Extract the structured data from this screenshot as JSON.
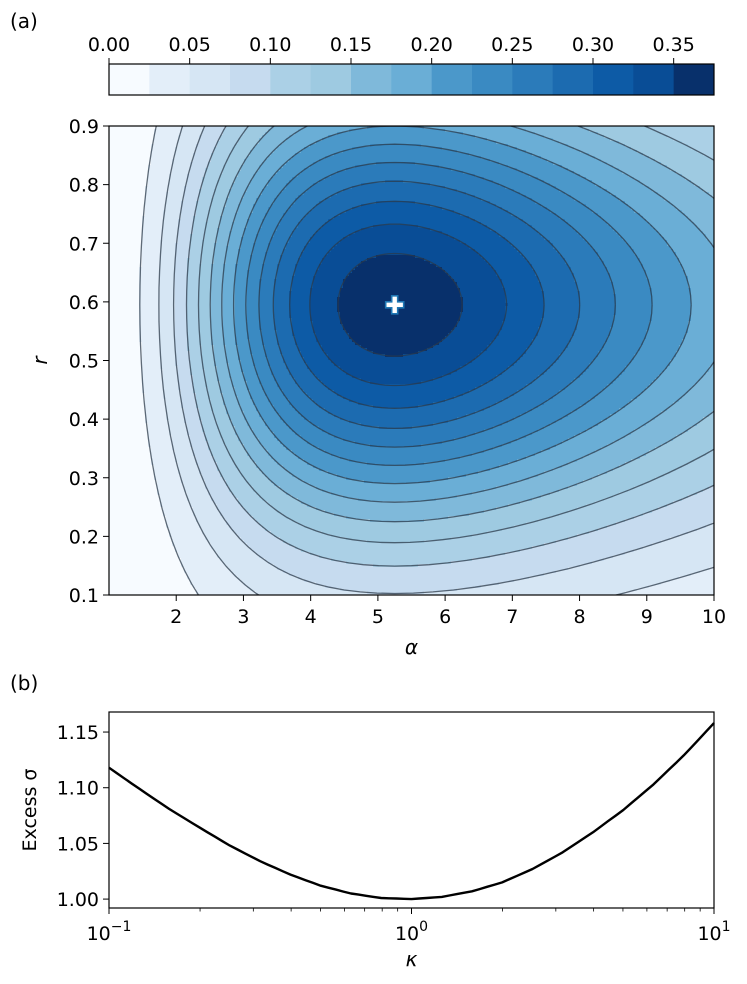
{
  "chart_data": [
    {
      "panel": "(a)",
      "type": "contour",
      "xlabel": "α",
      "ylabel": "r",
      "xlim": [
        1,
        10
      ],
      "ylim": [
        0.1,
        0.9
      ],
      "xticks": [
        2,
        3,
        4,
        5,
        6,
        7,
        8,
        9,
        10
      ],
      "yticks": [
        0.1,
        0.2,
        0.3,
        0.4,
        0.5,
        0.6,
        0.7,
        0.8,
        0.9
      ],
      "optimum_marker": {
        "alpha": 5.25,
        "r": 0.595,
        "symbol": "plus"
      },
      "colorbar": {
        "position": "top",
        "range": [
          0.0,
          0.375
        ],
        "levels": [
          0.0,
          0.025,
          0.05,
          0.075,
          0.1,
          0.125,
          0.15,
          0.175,
          0.2,
          0.225,
          0.25,
          0.275,
          0.3,
          0.325,
          0.35,
          0.375
        ],
        "tick_labels": [
          "0.00",
          "0.05",
          "0.10",
          "0.15",
          "0.20",
          "0.25",
          "0.30",
          "0.35"
        ],
        "tick_values": [
          0.0,
          0.05,
          0.1,
          0.15,
          0.2,
          0.25,
          0.3,
          0.35
        ],
        "colors": [
          "#f7fbff",
          "#e3eef9",
          "#d6e6f4",
          "#c6dbef",
          "#abd0e6",
          "#9ecae1",
          "#7fb9da",
          "#6aaed6",
          "#4b98ca",
          "#3a8ac2",
          "#2b7bba",
          "#1c6bb0",
          "#0d5ba6",
          "#094d96",
          "#08306b"
        ]
      }
    },
    {
      "panel": "(b)",
      "type": "line",
      "xlabel": "κ",
      "ylabel": "Excess σ",
      "xscale": "log",
      "xlim": [
        0.1,
        10
      ],
      "ylim": [
        0.992,
        1.168
      ],
      "xtick_labels": [
        {
          "base": "10",
          "exp": "−1",
          "value": 0.1
        },
        {
          "base": "10",
          "exp": "0",
          "value": 1
        },
        {
          "base": "10",
          "exp": "1",
          "value": 10
        }
      ],
      "ytick_labels": [
        "1.00",
        "1.05",
        "1.10",
        "1.15"
      ],
      "ytick_values": [
        1.0,
        1.05,
        1.1,
        1.15
      ],
      "series": [
        {
          "x": [
            0.1,
            0.126,
            0.158,
            0.2,
            0.251,
            0.316,
            0.398,
            0.501,
            0.631,
            0.794,
            1.0,
            1.259,
            1.585,
            1.995,
            2.512,
            3.162,
            3.981,
            5.012,
            6.31,
            7.943,
            10.0
          ],
          "y": [
            1.118,
            1.099,
            1.081,
            1.064,
            1.048,
            1.034,
            1.022,
            1.012,
            1.005,
            1.001,
            1.0,
            1.002,
            1.007,
            1.015,
            1.027,
            1.042,
            1.06,
            1.08,
            1.103,
            1.129,
            1.158
          ]
        }
      ]
    }
  ]
}
